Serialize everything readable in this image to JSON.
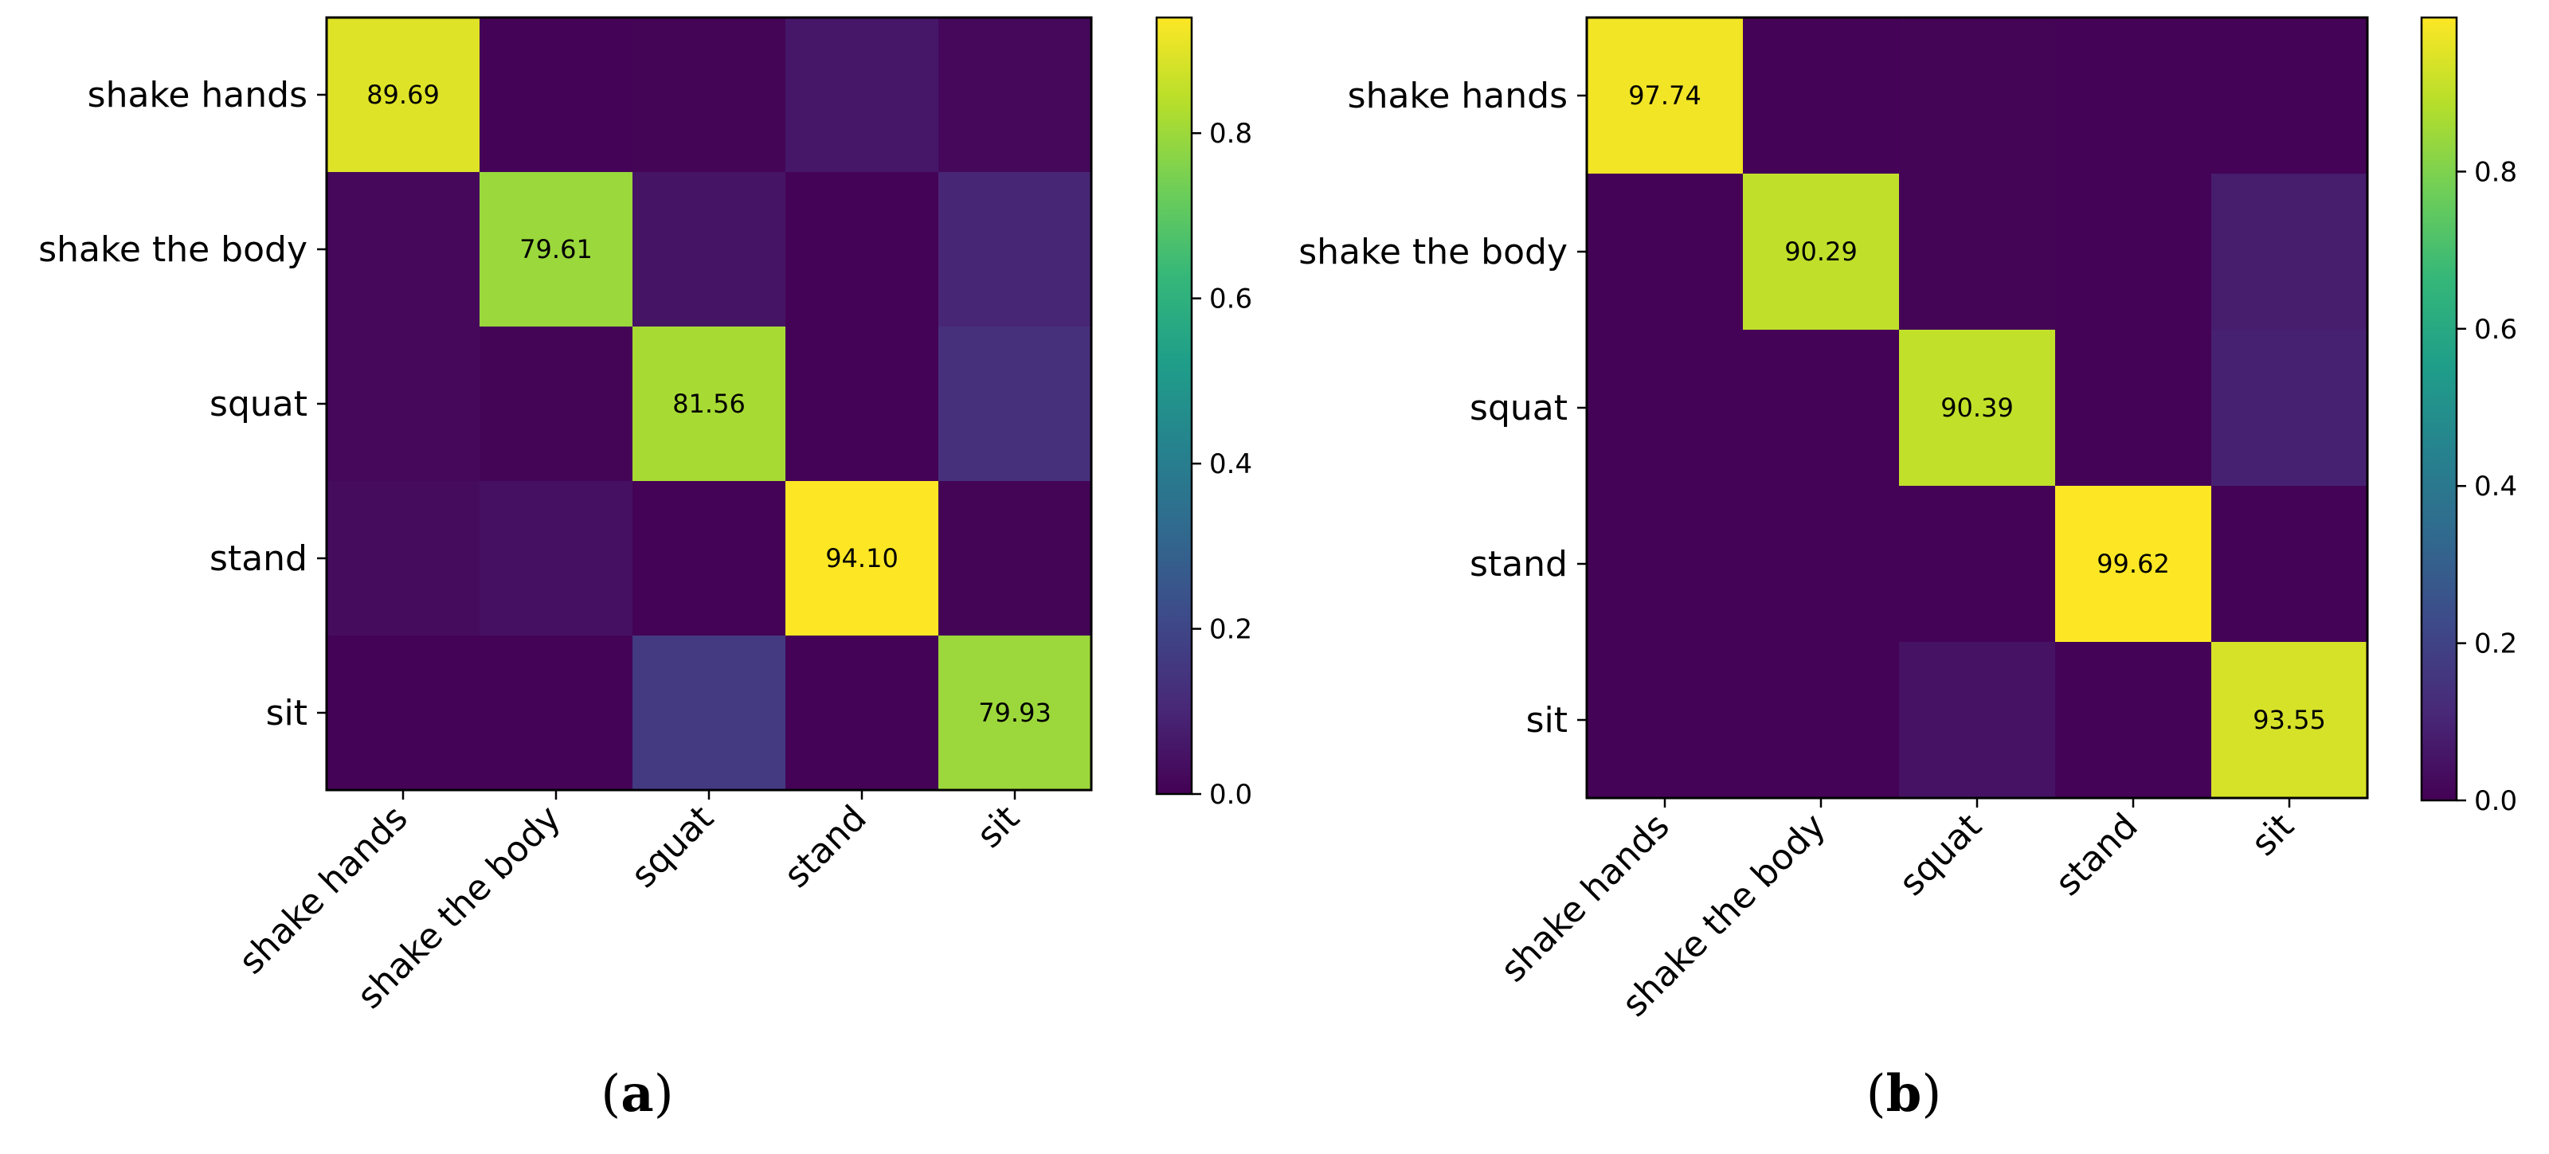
{
  "figure": {
    "panels": [
      "(a)",
      "(b)"
    ]
  },
  "colors": {
    "viridis": [
      "#440154",
      "#482878",
      "#3e4989",
      "#31688e",
      "#26828e",
      "#1f9e89",
      "#35b779",
      "#6ece58",
      "#b5de2b",
      "#fde725"
    ]
  },
  "chart_data": [
    {
      "type": "heatmap",
      "panel_label": "(a)",
      "rows": [
        "shake hands",
        "shake the body",
        "squat",
        "stand",
        "sit"
      ],
      "columns": [
        "shake hands",
        "shake the body",
        "squat",
        "stand",
        "sit"
      ],
      "values": [
        [
          0.8969,
          0.005,
          0.01,
          0.06,
          0.02
        ],
        [
          0.02,
          0.7961,
          0.05,
          0.005,
          0.1
        ],
        [
          0.02,
          0.01,
          0.8156,
          0.005,
          0.13
        ],
        [
          0.03,
          0.04,
          0.005,
          0.941,
          0.01
        ],
        [
          0.005,
          0.005,
          0.16,
          0.005,
          0.7993
        ]
      ],
      "cell_labels": [
        [
          0,
          0,
          "89.69"
        ],
        [
          1,
          1,
          "79.61"
        ],
        [
          2,
          2,
          "81.56"
        ],
        [
          3,
          3,
          "94.10"
        ],
        [
          4,
          4,
          "79.93"
        ]
      ],
      "colorbar": {
        "range": [
          0,
          0.94
        ],
        "ticks": [
          "0.0",
          "0.2",
          "0.4",
          "0.6",
          "0.8"
        ],
        "tick_values": [
          0,
          0.2,
          0.4,
          0.6,
          0.8
        ]
      }
    },
    {
      "type": "heatmap",
      "panel_label": "(b)",
      "rows": [
        "shake hands",
        "shake the body",
        "squat",
        "stand",
        "sit"
      ],
      "columns": [
        "shake hands",
        "shake the body",
        "squat",
        "stand",
        "sit"
      ],
      "values": [
        [
          0.9774,
          0.005,
          0.01,
          0.005,
          0.005
        ],
        [
          0.005,
          0.9029,
          0.01,
          0.005,
          0.08
        ],
        [
          0.005,
          0.005,
          0.9039,
          0.005,
          0.09
        ],
        [
          0.005,
          0.005,
          0.005,
          0.9962,
          0.005
        ],
        [
          0.005,
          0.005,
          0.05,
          0.005,
          0.9355
        ]
      ],
      "cell_labels": [
        [
          0,
          0,
          "97.74"
        ],
        [
          1,
          1,
          "90.29"
        ],
        [
          2,
          2,
          "90.39"
        ],
        [
          3,
          3,
          "99.62"
        ],
        [
          4,
          4,
          "93.55"
        ]
      ],
      "colorbar": {
        "range": [
          0,
          0.996
        ],
        "ticks": [
          "0.0",
          "0.2",
          "0.4",
          "0.6",
          "0.8"
        ],
        "tick_values": [
          0,
          0.2,
          0.4,
          0.6,
          0.8
        ]
      }
    }
  ]
}
